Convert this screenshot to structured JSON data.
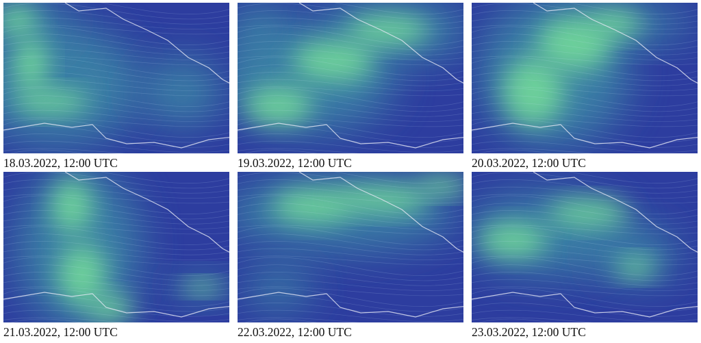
{
  "panels": [
    {
      "caption": "18.03.2022, 12:00 UTC"
    },
    {
      "caption": "19.03.2022, 12:00 UTC"
    },
    {
      "caption": "20.03.2022, 12:00 UTC"
    },
    {
      "caption": "21.03.2022, 12:00 UTC"
    },
    {
      "caption": "22.03.2022, 12:00 UTC"
    },
    {
      "caption": "23.03.2022, 12:00 UTC"
    }
  ]
}
